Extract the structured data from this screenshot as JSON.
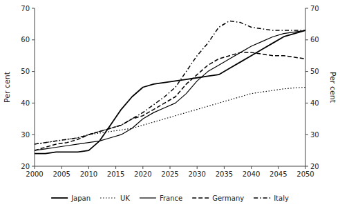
{
  "chart_data": {
    "type": "line",
    "x": [
      2000,
      2002,
      2004,
      2006,
      2008,
      2010,
      2012,
      2014,
      2016,
      2018,
      2020,
      2022,
      2024,
      2026,
      2028,
      2030,
      2032,
      2034,
      2036,
      2038,
      2040,
      2042,
      2044,
      2046,
      2048,
      2050
    ],
    "series": [
      {
        "name": "Japan",
        "color": "#000000",
        "line_style": "solid",
        "values": [
          24,
          24,
          24.5,
          24.5,
          24.5,
          25,
          28,
          33,
          38,
          42,
          45,
          46,
          46.5,
          47,
          47.5,
          48,
          48.5,
          49,
          51,
          53,
          55,
          57,
          59,
          61,
          62,
          63
        ]
      },
      {
        "name": "UK",
        "color": "#000000",
        "line_style": "dotted",
        "values": [
          27,
          27.5,
          28,
          28.5,
          29,
          30,
          30.5,
          31,
          31.5,
          32,
          33,
          34,
          35,
          36,
          37,
          38,
          39,
          40,
          41,
          42,
          43,
          43.5,
          44,
          44.5,
          44.8,
          45
        ]
      },
      {
        "name": "France",
        "color": "#000000",
        "line_style": "solid",
        "values": [
          25,
          25.5,
          26,
          26.5,
          27,
          27.5,
          28,
          29,
          30,
          32,
          35,
          37,
          38.5,
          40,
          43,
          47,
          50,
          52,
          54,
          56,
          58,
          59.5,
          61,
          62,
          62.5,
          63
        ]
      },
      {
        "name": "Germany",
        "color": "#000000",
        "line_style": "dashed",
        "values": [
          25,
          26,
          27,
          27.5,
          28.5,
          30,
          31,
          32,
          33,
          35,
          36,
          38,
          40,
          42,
          46,
          49,
          52,
          54,
          55,
          56,
          56,
          55.5,
          55,
          55,
          54.5,
          54
        ]
      },
      {
        "name": "Italy",
        "color": "#000000",
        "line_style": "dashdot",
        "values": [
          27,
          27.5,
          28,
          28.5,
          29,
          30,
          31,
          32,
          33,
          35,
          37,
          39.5,
          42,
          45,
          50,
          55,
          59,
          64,
          66,
          65.5,
          64,
          63.5,
          63,
          63,
          63,
          63
        ]
      }
    ],
    "xlim": [
      2000,
      2050
    ],
    "xticks": [
      2000,
      2005,
      2010,
      2015,
      2020,
      2025,
      2030,
      2035,
      2040,
      2045,
      2050
    ],
    "ylim": [
      20,
      70
    ],
    "yticks": [
      20,
      30,
      40,
      50,
      60,
      70
    ],
    "y2lim": [
      20,
      70
    ],
    "y2ticks": [
      20,
      30,
      40,
      50,
      60,
      70
    ],
    "ylabel": "Per cent",
    "y2label": "Per cent",
    "grid": false,
    "legend": "bottom"
  }
}
